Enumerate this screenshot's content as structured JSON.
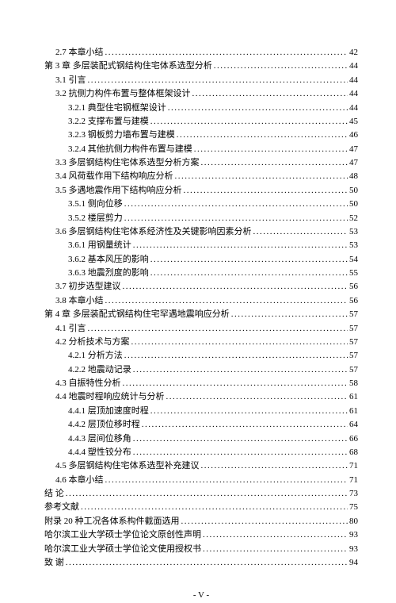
{
  "toc": [
    {
      "level": 1,
      "label": "2.7 本章小结",
      "page": "42"
    },
    {
      "level": 0,
      "label": "第 3 章 多层装配式钢结构住宅体系选型分析",
      "page": "44"
    },
    {
      "level": 1,
      "label": "3.1 引言",
      "page": "44"
    },
    {
      "level": 1,
      "label": "3.2 抗侧力构件布置与整体框架设计",
      "page": "44"
    },
    {
      "level": 2,
      "label": "3.2.1 典型住宅钢框架设计",
      "page": "44"
    },
    {
      "level": 2,
      "label": "3.2.2 支撑布置与建模",
      "page": "45"
    },
    {
      "level": 2,
      "label": "3.2.3 钢板剪力墙布置与建模",
      "page": "46"
    },
    {
      "level": 2,
      "label": "3.2.4 其他抗侧力构件布置与建模",
      "page": "47"
    },
    {
      "level": 1,
      "label": "3.3 多层钢结构住宅体系选型分析方案",
      "page": "47"
    },
    {
      "level": 1,
      "label": "3.4 风荷载作用下结构响应分析",
      "page": "48"
    },
    {
      "level": 1,
      "label": "3.5 多遇地震作用下结构响应分析",
      "page": "50"
    },
    {
      "level": 2,
      "label": "3.5.1 侧向位移",
      "page": "50"
    },
    {
      "level": 2,
      "label": "3.5.2 楼层剪力",
      "page": "52"
    },
    {
      "level": 1,
      "label": "3.6 多层钢结构住宅体系经济性及关键影响因素分析",
      "page": "53"
    },
    {
      "level": 2,
      "label": "3.6.1 用钢量统计",
      "page": "53"
    },
    {
      "level": 2,
      "label": "3.6.2 基本风压的影响",
      "page": "54"
    },
    {
      "level": 2,
      "label": "3.6.3 地震烈度的影响",
      "page": "55"
    },
    {
      "level": 1,
      "label": "3.7 初步选型建议",
      "page": "56"
    },
    {
      "level": 1,
      "label": "3.8 本章小结",
      "page": "56"
    },
    {
      "level": 0,
      "label": "第 4 章 多层装配式钢结构住宅罕遇地震响应分析",
      "page": "57"
    },
    {
      "level": 1,
      "label": "4.1 引言",
      "page": "57"
    },
    {
      "level": 1,
      "label": "4.2 分析技术与方案",
      "page": "57"
    },
    {
      "level": 2,
      "label": "4.2.1 分析方法",
      "page": "57"
    },
    {
      "level": 2,
      "label": "4.2.2 地震动记录",
      "page": "57"
    },
    {
      "level": 1,
      "label": "4.3 自振特性分析",
      "page": "58"
    },
    {
      "level": 1,
      "label": "4.4 地震时程响应统计与分析",
      "page": "61"
    },
    {
      "level": 2,
      "label": "4.4.1 层顶加速度时程",
      "page": "61"
    },
    {
      "level": 2,
      "label": "4.4.2 层顶位移时程",
      "page": "64"
    },
    {
      "level": 2,
      "label": "4.4.3 层间位移角",
      "page": "66"
    },
    {
      "level": 2,
      "label": "4.4.4 塑性铰分布",
      "page": "68"
    },
    {
      "level": 1,
      "label": "4.5 多层钢结构住宅体系选型补充建议",
      "page": "71"
    },
    {
      "level": 1,
      "label": "4.6 本章小结",
      "page": "71"
    },
    {
      "level": 0,
      "label": "结  论",
      "page": "73"
    },
    {
      "level": 0,
      "label": "参考文献",
      "page": "75"
    },
    {
      "level": 0,
      "label": "附录  20 种工况各体系构件截面选用",
      "page": "80"
    },
    {
      "level": 0,
      "label": "哈尔滨工业大学硕士学位论文原创性声明",
      "page": "93"
    },
    {
      "level": 0,
      "label": "哈尔滨工业大学硕士学位论文使用授权书",
      "page": "93"
    },
    {
      "level": 0,
      "label": "致  谢",
      "page": "94"
    }
  ],
  "page_number": "- V -"
}
